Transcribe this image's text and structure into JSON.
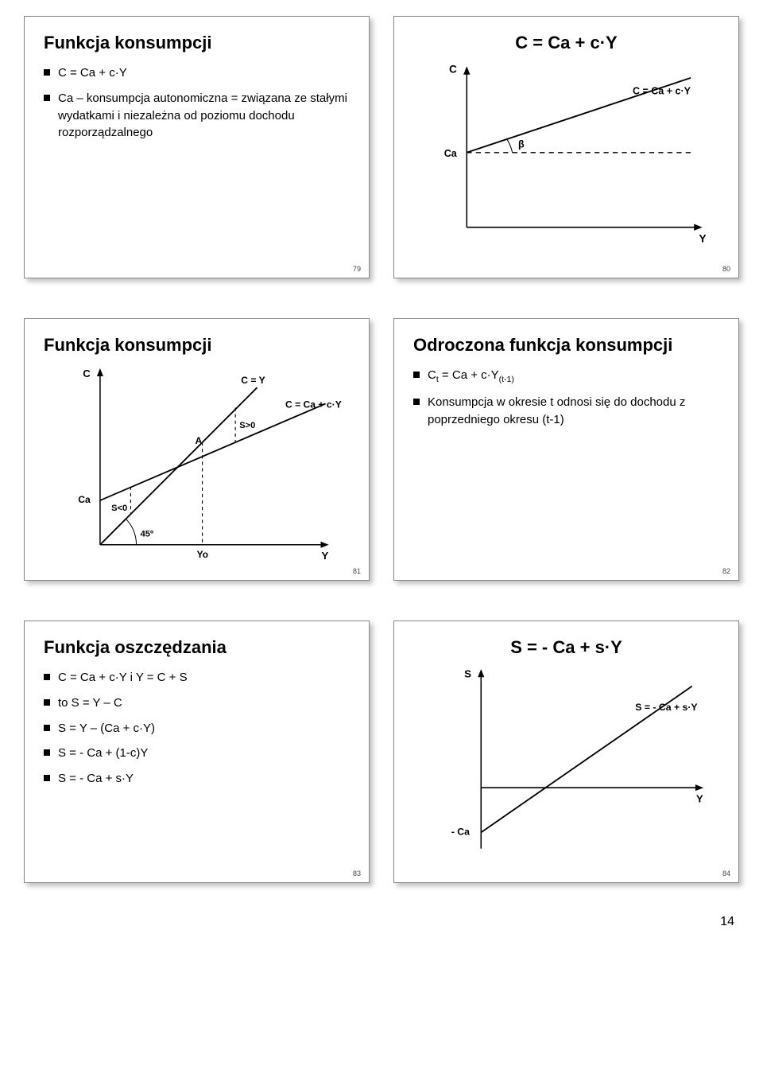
{
  "page_number": "14",
  "colors": {
    "border": "#888888",
    "shadow": "rgba(0,0,0,0.25)",
    "bg": "#ffffff",
    "text": "#000000",
    "axis": "#000000",
    "line": "#000000",
    "dash": "#000000"
  },
  "font": {
    "family": "Verdana, Arial, sans-serif",
    "title_size": 22,
    "body_size": 15,
    "chart_label_size": 13
  },
  "slides": {
    "s79": {
      "num": "79",
      "title": "Funkcja konsumpcji",
      "bullets": [
        "C = Ca + c·Y",
        "Ca – konsumpcja autonomiczna = związana ze stałymi wydatkami i niezależna od poziomu dochodu rozporządzalnego"
      ]
    },
    "s80": {
      "num": "80",
      "title": "C = Ca + c·Y",
      "chart": {
        "type": "line",
        "axes": {
          "x": "Y",
          "y": "C"
        },
        "intercept_label": "Ca",
        "line_label": "C = Ca + c·Y",
        "angle_label": "β",
        "background": "#ffffff",
        "axis_color": "#000000",
        "line_color": "#000000",
        "dash_color": "#000000",
        "line_width": 1.6,
        "dash_pattern": "5,4",
        "x_range": [
          0,
          260
        ],
        "y_range": [
          0,
          170
        ],
        "intercept_y": 95,
        "slope": 0.35
      }
    },
    "s81": {
      "num": "81",
      "title": "Funkcja konsumpcji",
      "chart": {
        "type": "line_dual",
        "axes": {
          "x": "Y",
          "y": "C"
        },
        "labels": {
          "c_eq_y": "C = Y",
          "c_line": "C = Ca + c·Y",
          "ca": "Ca",
          "a": "A",
          "s_gt0": "S>0",
          "s_lt0": "S<0",
          "angle": "45º",
          "yo": "Yo"
        },
        "colors": {
          "bg": "#ffffff",
          "axis": "#000000",
          "line45": "#000000",
          "linec": "#000000",
          "dash": "#000000"
        },
        "line_width": 1.6,
        "x_range": [
          0,
          240
        ],
        "y_range": [
          0,
          210
        ],
        "intercept_y": 55,
        "slope_c": 0.55,
        "yo_x": 120
      }
    },
    "s82": {
      "num": "82",
      "title": "Odroczona funkcja konsumpcji",
      "bullets": [
        "C<sub>t</sub> = Ca + c·Y<sub>(t-1)</sub>",
        "Konsumpcja w okresie t odnosi się do dochodu z poprzedniego okresu (t-1)"
      ]
    },
    "s83": {
      "num": "83",
      "title": "Funkcja oszczędzania",
      "bullets": [
        "C = Ca + c·Y  i  Y = C + S",
        "to   S = Y – C",
        "S = Y – (Ca + c·Y)",
        "S = - Ca + (1-c)Y",
        "S = - Ca + s·Y"
      ]
    },
    "s84": {
      "num": "84",
      "title": "S = - Ca + s·Y",
      "chart": {
        "type": "line_neg_intercept",
        "axes": {
          "x": "Y",
          "y": "S"
        },
        "intercept_label": "- Ca",
        "line_label": "S = - Ca + s·Y",
        "colors": {
          "bg": "#ffffff",
          "axis": "#000000",
          "line": "#000000"
        },
        "line_width": 1.6,
        "x_range": [
          0,
          260
        ],
        "y_range": [
          -70,
          140
        ],
        "intercept_y": -55,
        "slope": 0.75
      }
    }
  }
}
